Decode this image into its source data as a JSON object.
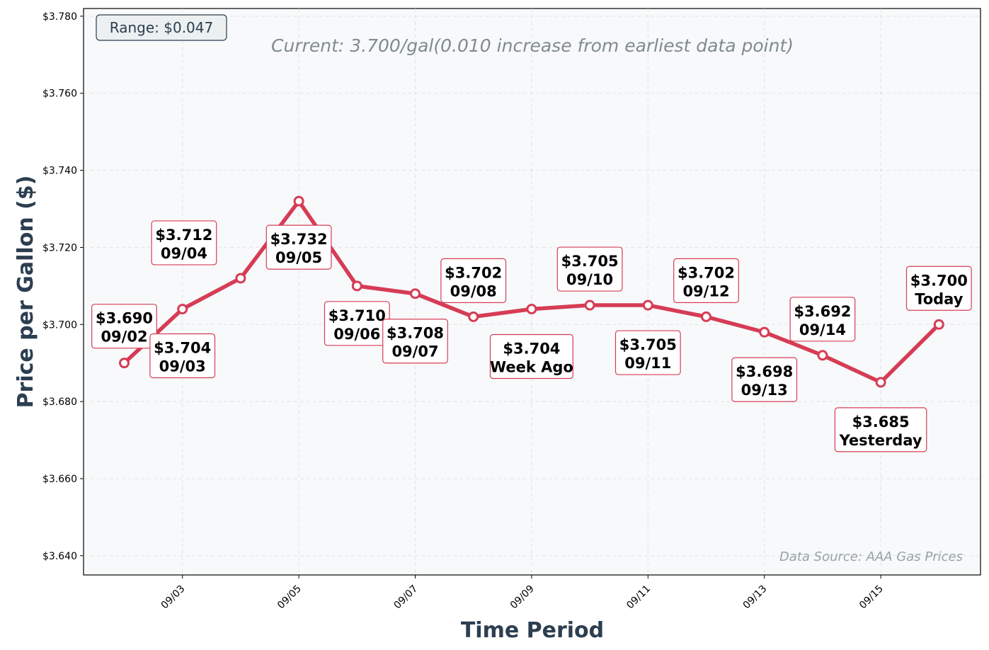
{
  "chart_data": {
    "type": "line",
    "xlabel": "Time Period",
    "ylabel": "Price per Gallon ($)",
    "ylim": [
      3.635,
      3.782
    ],
    "y_ticks": [
      "$3.640",
      "$3.660",
      "$3.680",
      "$3.700",
      "$3.720",
      "$3.740",
      "$3.760",
      "$3.780"
    ],
    "x_ticks": [
      "09/03",
      "09/05",
      "09/07",
      "09/09",
      "09/11",
      "09/13",
      "09/15"
    ],
    "grid": true,
    "line_color": "#d63c55",
    "points": [
      {
        "x": "09/02",
        "y": 3.69,
        "value_label": "$3.690",
        "date_label": "09/02"
      },
      {
        "x": "09/03",
        "y": 3.704,
        "value_label": "$3.704",
        "date_label": "09/03"
      },
      {
        "x": "09/04",
        "y": 3.712,
        "value_label": "$3.712",
        "date_label": "09/04"
      },
      {
        "x": "09/05",
        "y": 3.732,
        "value_label": "$3.732",
        "date_label": "09/05"
      },
      {
        "x": "09/06",
        "y": 3.71,
        "value_label": "$3.710",
        "date_label": "09/06"
      },
      {
        "x": "09/07",
        "y": 3.708,
        "value_label": "$3.708",
        "date_label": "09/07"
      },
      {
        "x": "09/08",
        "y": 3.702,
        "value_label": "$3.702",
        "date_label": "09/08"
      },
      {
        "x": "09/09",
        "y": 3.704,
        "value_label": "$3.704",
        "date_label": "Week Ago"
      },
      {
        "x": "09/10",
        "y": 3.705,
        "value_label": "$3.705",
        "date_label": "09/10"
      },
      {
        "x": "09/11",
        "y": 3.705,
        "value_label": "$3.705",
        "date_label": "09/11"
      },
      {
        "x": "09/12",
        "y": 3.702,
        "value_label": "$3.702",
        "date_label": "09/12"
      },
      {
        "x": "09/13",
        "y": 3.698,
        "value_label": "$3.698",
        "date_label": "09/13"
      },
      {
        "x": "09/14",
        "y": 3.692,
        "value_label": "$3.692",
        "date_label": "09/14"
      },
      {
        "x": "09/15",
        "y": 3.685,
        "value_label": "$3.685",
        "date_label": "Yesterday"
      },
      {
        "x": "09/16",
        "y": 3.7,
        "value_label": "$3.700",
        "date_label": "Today"
      }
    ],
    "annotations": {
      "current": "Current: 3.700/gal(0.010 increase from earliest data point)",
      "range": "Range: $0.047",
      "source": "Data Source: AAA Gas Prices"
    }
  }
}
